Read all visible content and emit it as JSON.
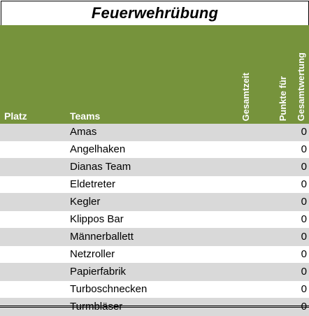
{
  "sheet": {
    "title": "Feuerwehrübung",
    "header": {
      "platz": "Platz",
      "teams": "Teams",
      "gesamtzeit": "Gesamtzeit",
      "punkte": "Punkte für",
      "gesamtwertung": "Gesamtwertung",
      "fill_color": "#76933c"
    },
    "rows": [
      {
        "team": "Amas",
        "score": "0"
      },
      {
        "team": "Angelhaken",
        "score": "0"
      },
      {
        "team": "Dianas Team",
        "score": "0"
      },
      {
        "team": "Eldetreter",
        "score": "0"
      },
      {
        "team": "Kegler",
        "score": "0"
      },
      {
        "team": "Klippos Bar",
        "score": "0"
      },
      {
        "team": "Männerballett",
        "score": "0"
      },
      {
        "team": "Netzroller",
        "score": "0"
      },
      {
        "team": "Papierfabrik",
        "score": "0"
      },
      {
        "team": "Turboschnecken",
        "score": "0"
      },
      {
        "team": "Turmbläser",
        "score": "0"
      }
    ],
    "band_color": "#d9d9d9"
  }
}
